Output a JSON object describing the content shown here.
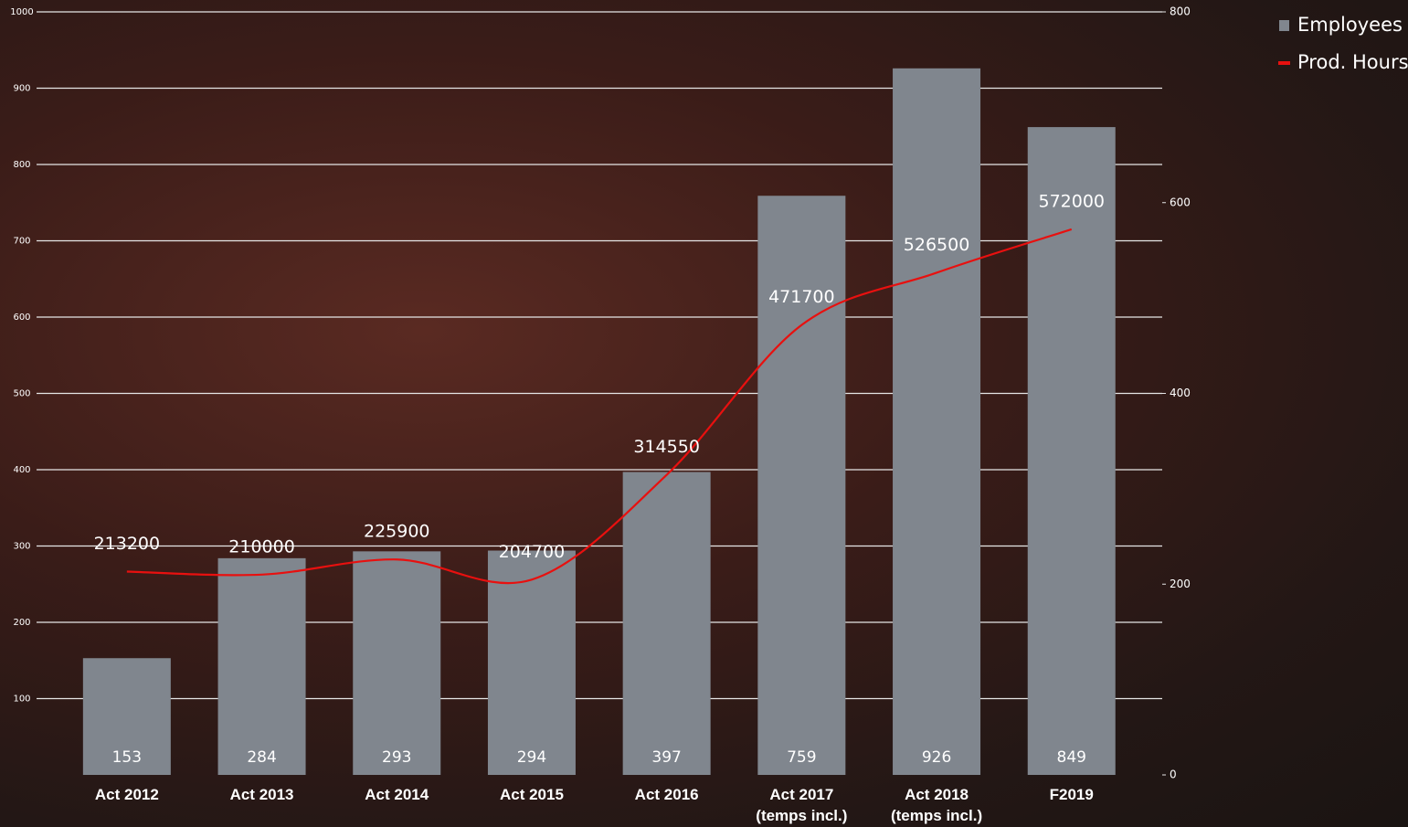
{
  "chart_data": {
    "type": "bar",
    "categories": [
      "Act 2012",
      "Act 2013",
      "Act 2014",
      "Act 2015",
      "Act 2016",
      "Act 2017 (temps incl.)",
      "Act 2018 (temps incl.)",
      "F2019"
    ],
    "series": [
      {
        "name": "Employees",
        "type": "bar",
        "color": "#80868e",
        "values": [
          153,
          284,
          293,
          294,
          397,
          759,
          926,
          849
        ]
      },
      {
        "name": "Prod. Hours",
        "type": "line",
        "axis": "y2",
        "color": "#e8100f",
        "values": [
          213.2,
          210,
          225.9,
          204.7,
          314.55,
          471.7,
          526.5,
          572
        ],
        "value_labels": [
          "213200",
          "210000",
          "225900",
          "204700",
          "314550",
          "471700",
          "526500",
          "572000"
        ]
      }
    ],
    "ylim": [
      0,
      1000
    ],
    "yticks": [
      100,
      200,
      300,
      400,
      500,
      600,
      700,
      800,
      900,
      1000
    ],
    "y2lim": [
      0,
      800
    ],
    "y2ticks": [
      0,
      200,
      400,
      600,
      800
    ],
    "grid": true,
    "legend": "top-right"
  }
}
